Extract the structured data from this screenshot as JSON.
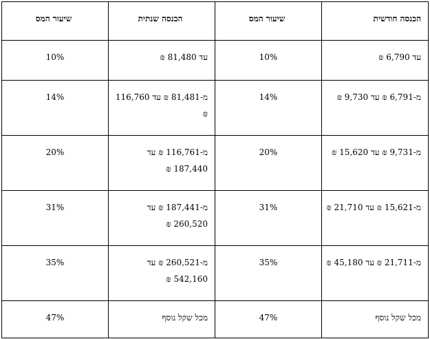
{
  "headers": [
    "הכנסה חודשית",
    "שיעור המס",
    "הכנסה שנתית",
    "שיעור המס"
  ],
  "rows": [
    [
      "עד 6,790 ₪",
      "10%",
      "עד 81,480 ₪",
      "10%"
    ],
    [
      "מ-6,791 ₪ עד 9,730 ₪",
      "14%",
      "מ-81,481 ₪ עד 116,760 ₪",
      "14%"
    ],
    [
      "מ-9,731 ₪ עד 15,620 ₪",
      "20%",
      "מ-116,761 ₪ עד 187,440 ₪",
      "20%"
    ],
    [
      "מ-15,621 ₪ עד 21,710 ₪",
      "31%",
      "מ-187,441 ₪ עד 260,520 ₪",
      "31%"
    ],
    [
      "מ-21,711 ₪ עד 45,180 ₪",
      "35%",
      "מ-260,521 ₪ עד 542,160 ₪",
      "35%"
    ],
    [
      "מכל שקל נוסף",
      "47%",
      "מכל שקל נוסף",
      "47%"
    ]
  ]
}
